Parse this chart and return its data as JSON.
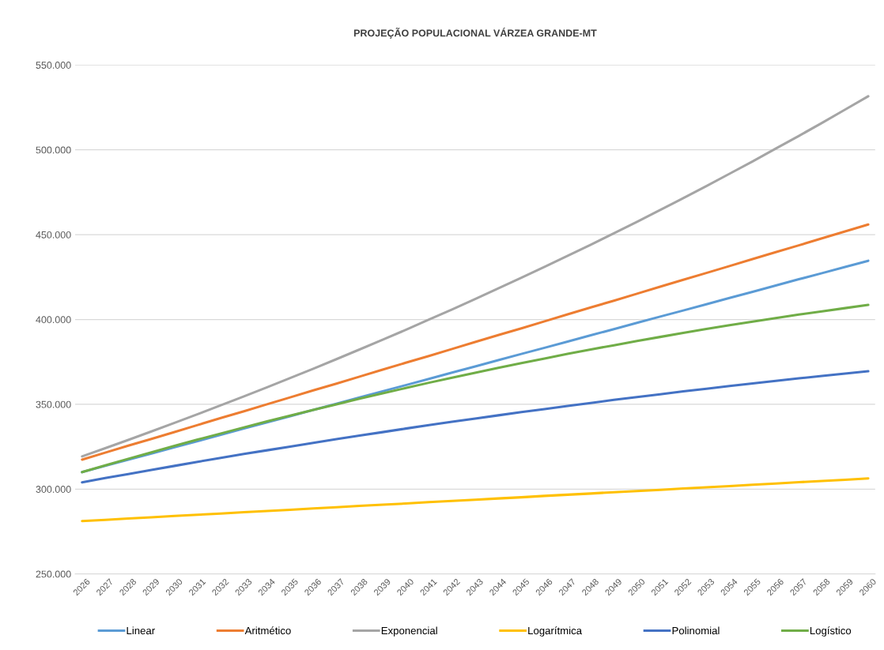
{
  "chart_data": {
    "type": "line",
    "title": "PROJEÇÃO POPULACIONAL VÁRZEA GRANDE-MT",
    "categories": [
      "2026",
      "2027",
      "2028",
      "2029",
      "2030",
      "2031",
      "2032",
      "2033",
      "2034",
      "2035",
      "2036",
      "2037",
      "2038",
      "2039",
      "2040",
      "2041",
      "2042",
      "2043",
      "2044",
      "2045",
      "2046",
      "2047",
      "2048",
      "2049",
      "2050",
      "2051",
      "2052",
      "2053",
      "2054",
      "2055",
      "2056",
      "2057",
      "2058",
      "2059",
      "2060"
    ],
    "series": [
      {
        "name": "Linear",
        "color": "#5b9bd5",
        "values": [
          310000,
          313700,
          317300,
          321000,
          324700,
          328300,
          332000,
          335700,
          339300,
          343000,
          346700,
          350300,
          354000,
          357700,
          361300,
          365000,
          368700,
          372300,
          376000,
          379700,
          383300,
          387000,
          390700,
          394300,
          398000,
          401700,
          405300,
          409000,
          412700,
          416300,
          420000,
          423700,
          427300,
          431000,
          434600
        ]
      },
      {
        "name": "Aritmético",
        "color": "#ed7d31",
        "values": [
          317400,
          321500,
          325600,
          329600,
          333700,
          337800,
          341900,
          345900,
          350000,
          354100,
          358200,
          362200,
          366300,
          370400,
          374500,
          378500,
          382600,
          386700,
          390800,
          394800,
          398900,
          403000,
          407100,
          411100,
          415200,
          419300,
          423400,
          427400,
          431500,
          435600,
          439700,
          443700,
          447800,
          451900,
          456000
        ]
      },
      {
        "name": "Exponencial",
        "color": "#a5a5a5",
        "values": [
          319300,
          324100,
          329000,
          334000,
          339100,
          344200,
          349400,
          354700,
          360000,
          365500,
          371000,
          376600,
          382300,
          388100,
          393900,
          399900,
          405900,
          412000,
          418300,
          424600,
          431000,
          437500,
          444100,
          450800,
          457600,
          464500,
          471500,
          478600,
          485900,
          493200,
          500700,
          508200,
          515900,
          523700,
          531600
        ]
      },
      {
        "name": "Logarítmica",
        "color": "#ffc000",
        "values": [
          281200,
          281900,
          282700,
          283400,
          284200,
          284900,
          285600,
          286400,
          287100,
          287800,
          288600,
          289300,
          290100,
          290800,
          291500,
          292300,
          293000,
          293700,
          294500,
          295200,
          296000,
          296700,
          297400,
          298200,
          298900,
          299600,
          300400,
          301100,
          301800,
          302600,
          303300,
          304100,
          304800,
          305500,
          306300
        ]
      },
      {
        "name": "Polinomial",
        "color": "#4472c4",
        "values": [
          304000,
          306500,
          308900,
          311300,
          313700,
          316100,
          318400,
          320700,
          322900,
          325100,
          327300,
          329500,
          331600,
          333600,
          335700,
          337700,
          339700,
          341600,
          343500,
          345400,
          347200,
          349000,
          350800,
          352600,
          354300,
          355900,
          357600,
          359200,
          360800,
          362300,
          363800,
          365300,
          366700,
          368100,
          369500
        ]
      },
      {
        "name": "Logístico",
        "color": "#70ad47",
        "values": [
          310000,
          314000,
          317900,
          321700,
          325500,
          329200,
          332800,
          336400,
          339900,
          343300,
          346700,
          350000,
          353300,
          356500,
          359600,
          362700,
          365700,
          368600,
          371500,
          374300,
          377000,
          379700,
          382300,
          384800,
          387300,
          389700,
          392100,
          394400,
          396600,
          398700,
          400800,
          402900,
          404800,
          406700,
          408600
        ]
      }
    ],
    "ylim": [
      250000,
      550000
    ],
    "yticks": [
      {
        "value": 250000,
        "label": "250.000"
      },
      {
        "value": 300000,
        "label": "300.000"
      },
      {
        "value": 350000,
        "label": "350.000"
      },
      {
        "value": 400000,
        "label": "400.000"
      },
      {
        "value": 450000,
        "label": "450.000"
      },
      {
        "value": 500000,
        "label": "500.000"
      },
      {
        "value": 550000,
        "label": "550.000"
      }
    ],
    "grid": "y",
    "legend": "bottom",
    "marker": "none",
    "line_style": "solid"
  }
}
